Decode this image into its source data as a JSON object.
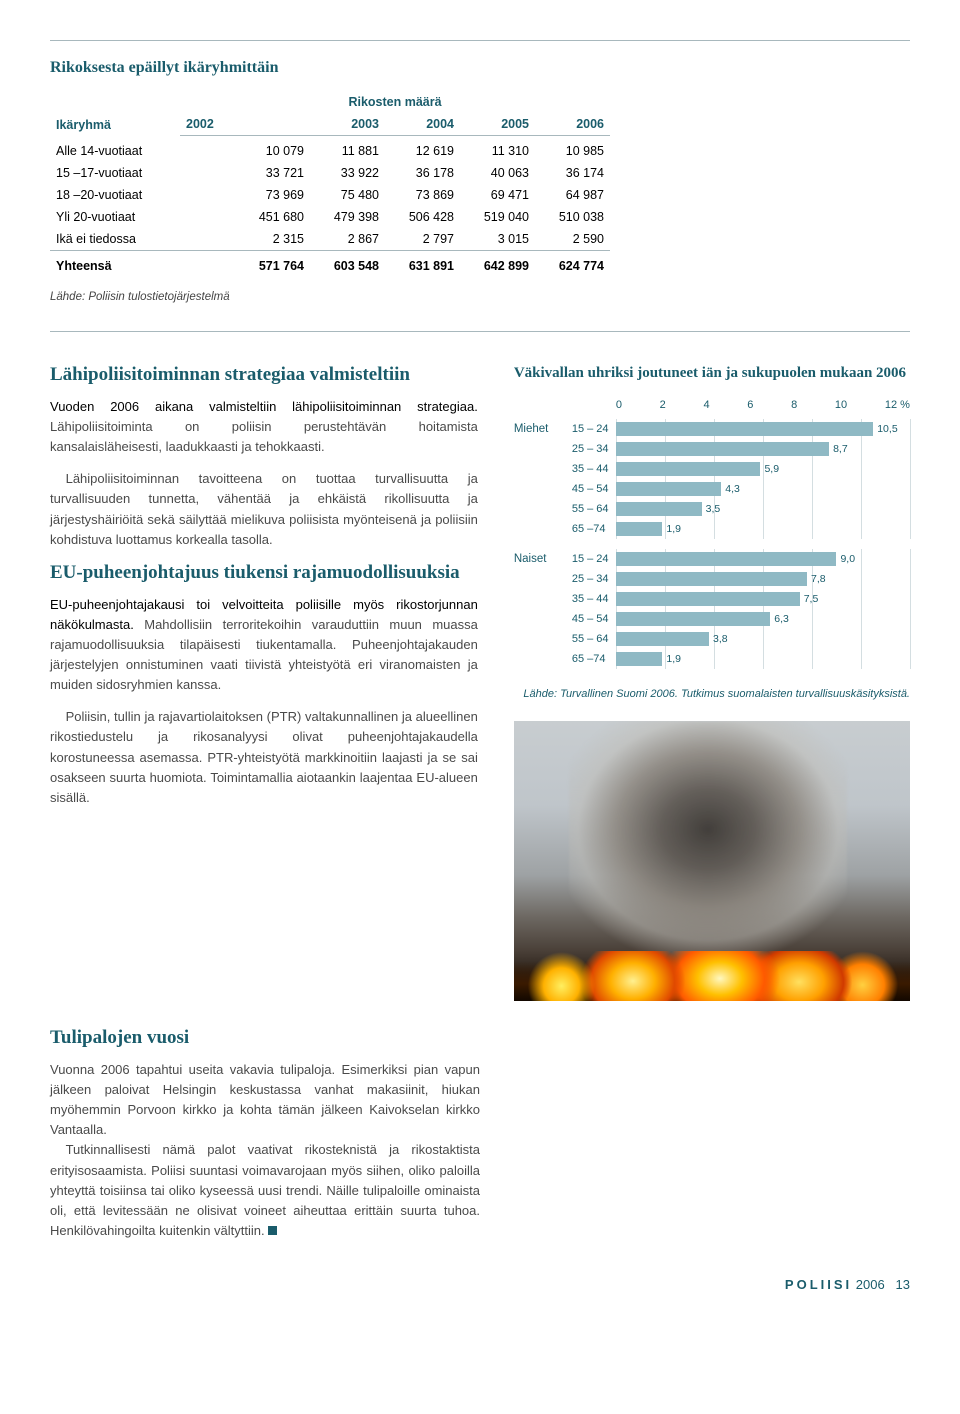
{
  "table": {
    "title": "Rikoksesta epäillyt ikäryhmittäin",
    "col_group_label": "Ikäryhmä",
    "super_header": "Rikosten määrä",
    "years": [
      "2002",
      "2003",
      "2004",
      "2005",
      "2006"
    ],
    "rows": [
      {
        "label": "Alle 14-vuotiaat",
        "v": [
          "10 079",
          "11 881",
          "12 619",
          "11 310",
          "10 985"
        ]
      },
      {
        "label": "15 –17-vuotiaat",
        "v": [
          "33 721",
          "33 922",
          "36 178",
          "40 063",
          "36 174"
        ]
      },
      {
        "label": "18 –20-vuotiaat",
        "v": [
          "73 969",
          "75 480",
          "73 869",
          "69 471",
          "64 987"
        ]
      },
      {
        "label": "Yli 20-vuotiaat",
        "v": [
          "451 680",
          "479 398",
          "506 428",
          "519 040",
          "510 038"
        ]
      },
      {
        "label": "Ikä ei tiedossa",
        "v": [
          "2 315",
          "2 867",
          "2 797",
          "3 015",
          "2 590"
        ]
      }
    ],
    "total": {
      "label": "Yhteensä",
      "v": [
        "571 764",
        "603 548",
        "631 891",
        "642 899",
        "624 774"
      ]
    },
    "source": "Lähde: Poliisin tulostietojärjestelmä"
  },
  "leftcol": {
    "h1": "Lähipoliisitoiminnan strategiaa valmisteltiin",
    "p1a": "Vuoden 2006 aikana valmisteltiin lähipoliisitoiminnan strategiaa.",
    "p1b": " Lähipoliisitoiminta on poliisin perustehtävän hoitamista kansalaisläheisesti, laadukkaasti ja tehokkaasti.",
    "p2": "Lähipoliisitoiminnan tavoitteena on tuottaa turvallisuutta ja turvallisuuden tunnetta, vähentää ja ehkäistä rikollisuutta ja järjestyshäiriöitä sekä säilyttää mielikuva poliisista myönteisenä ja poliisiin kohdistuva luottamus korkealla tasolla.",
    "h2": "EU-puheenjohtajuus tiukensi rajamuodollisuuksia",
    "p3a": "EU-puheenjohtajakausi toi velvoitteita poliisille myös rikostorjunnan näkökulmasta.",
    "p3b": " Mahdollisiin terroritekoihin varauduttiin muun muassa rajamuodollisuuksia tilapäisesti tiukentamalla. Puheenjohtajakauden järjestelyjen onnistuminen vaati tiivistä yhteistyötä eri viranomaisten ja muiden sidosryhmien kanssa.",
    "p4": "Poliisin, tullin ja rajavartiolaitoksen (PTR) valtakunnallinen ja alueellinen rikostiedustelu ja rikosanalyysi olivat puheenjohtajakaudella korostuneessa asemassa. PTR-yhteistyötä markkinoitiin laajasti ja se sai osakseen suurta huomiota. Toimintamallia aiotaankin laajentaa EU-alueen sisällä."
  },
  "chart": {
    "title": "Väkivallan uhriksi joutuneet iän ja sukupuolen mukaan 2006",
    "xmax": 12,
    "xtick": 2,
    "unit": "%",
    "bar_color": "#8fb9c4",
    "grid_color": "#d4dee1",
    "text_color": "#1a5c6b",
    "groups": [
      {
        "label": "Miehet",
        "rows": [
          {
            "cat": "15 – 24",
            "val": 10.5
          },
          {
            "cat": "25 – 34",
            "val": 8.7
          },
          {
            "cat": "35 – 44",
            "val": 5.9
          },
          {
            "cat": "45 – 54",
            "val": 4.3
          },
          {
            "cat": "55 – 64",
            "val": 3.5
          },
          {
            "cat": "65 –74",
            "val": 1.9
          }
        ]
      },
      {
        "label": "Naiset",
        "rows": [
          {
            "cat": "15 – 24",
            "val": 9.0
          },
          {
            "cat": "25 – 34",
            "val": 7.8
          },
          {
            "cat": "35 – 44",
            "val": 7.5
          },
          {
            "cat": "45 – 54",
            "val": 6.3
          },
          {
            "cat": "55 – 64",
            "val": 3.8
          },
          {
            "cat": "65 –74",
            "val": 1.9
          }
        ]
      }
    ],
    "source": "Lähde: Turvallinen Suomi 2006. Tutkimus suomalaisten turvallisuuskäsityksistä."
  },
  "bottom": {
    "h": "Tulipalojen vuosi",
    "p1a": "Vuonna 2006 tapahtui useita vakavia tulipaloja.",
    "p1b": " Esimerkiksi pian vapun jälkeen paloivat Helsingin keskustassa vanhat makasiinit, hiukan myöhemmin Porvoon kirkko ja kohta tämän jälkeen Kaivokselan kirkko Vantaalla.",
    "p2": "Tutkinnallisesti nämä palot vaativat rikosteknistä ja rikostaktista erityisosaamista. Poliisi suuntasi voimavarojaan myös siihen, oliko paloilla yhteyttä toisiinsa tai oliko kyseessä uusi trendi. Näille tulipaloille ominaista oli, että levitessään ne olisivat voineet aiheuttaa erittäin suurta tuhoa. Henkilövahingoilta kuitenkin vältyttiin."
  },
  "footer": {
    "brand": "POLIISI",
    "year": "2006",
    "page": "13"
  }
}
